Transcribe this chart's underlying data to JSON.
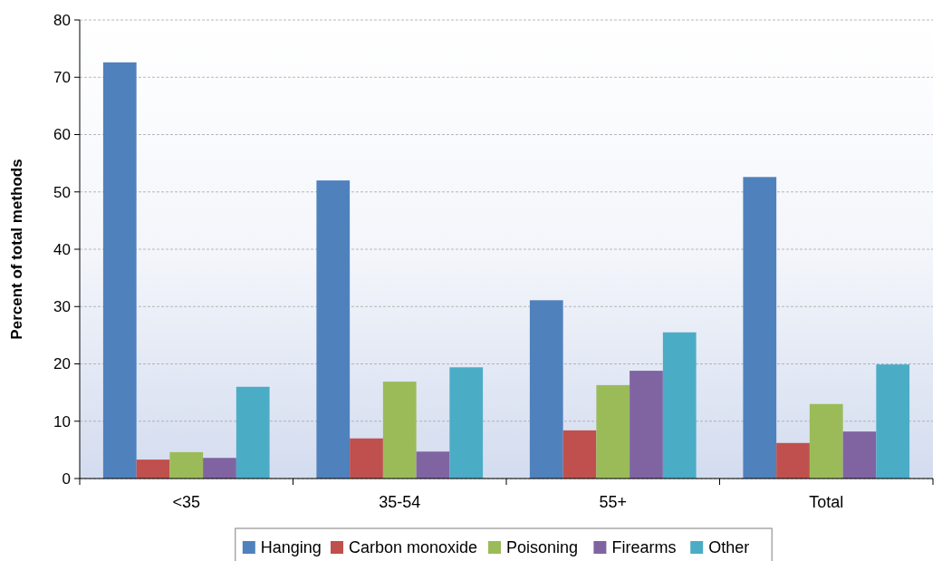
{
  "chart_data": {
    "type": "bar",
    "ylabel": "Percent of total methods",
    "categories": [
      "<35",
      "35-54",
      "55+",
      "Total"
    ],
    "series": [
      {
        "name": "Hanging",
        "color": "#4f81bd",
        "values": [
          72.6,
          52.0,
          31.1,
          52.6
        ]
      },
      {
        "name": "Carbon monoxide",
        "color": "#c0504d",
        "values": [
          3.3,
          7.0,
          8.4,
          6.2
        ]
      },
      {
        "name": "Poisoning",
        "color": "#9bbb59",
        "values": [
          4.6,
          16.9,
          16.3,
          13.0
        ]
      },
      {
        "name": "Firearms",
        "color": "#8064a2",
        "values": [
          3.6,
          4.7,
          18.8,
          8.2
        ]
      },
      {
        "name": "Other",
        "color": "#4bacc6",
        "values": [
          16.0,
          19.4,
          25.5,
          19.9
        ]
      }
    ],
    "ylim": [
      0,
      80
    ],
    "yticks": [
      0,
      10,
      20,
      30,
      40,
      50,
      60,
      70,
      80
    ],
    "grid": "y",
    "legend": "bottom"
  }
}
